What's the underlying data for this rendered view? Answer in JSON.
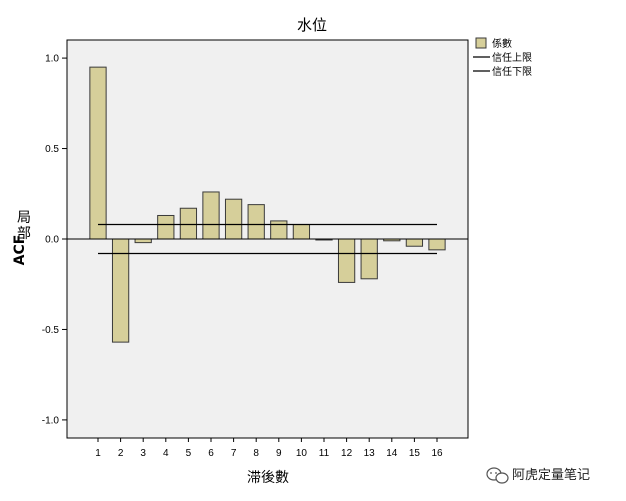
{
  "chart_data": {
    "type": "bar",
    "title": "水位",
    "xlabel": "滞後數",
    "ylabel_line1": "局",
    "ylabel_line2": "部",
    "ylabel_line3": "ACF",
    "categories": [
      "1",
      "2",
      "3",
      "4",
      "5",
      "6",
      "7",
      "8",
      "9",
      "10",
      "11",
      "12",
      "13",
      "14",
      "15",
      "16"
    ],
    "series": [
      {
        "name": "係數",
        "values": [
          0.95,
          -0.57,
          -0.02,
          0.13,
          0.17,
          0.26,
          0.22,
          0.19,
          0.1,
          0.08,
          0.0,
          -0.24,
          -0.22,
          -0.01,
          -0.04,
          -0.06
        ],
        "color": "#d6cf9a",
        "edge_color": "#3a3a3a"
      }
    ],
    "confidence_limits": {
      "upper_name": "信任上限",
      "lower_name": "信任下限",
      "upper": 0.08,
      "lower": -0.08
    },
    "ylim": [
      -1.1,
      1.1
    ],
    "yticks": [
      1.0,
      0.5,
      0.0,
      -0.5,
      -1.0
    ],
    "ytick_labels": [
      "1.0",
      "0.5",
      "0.0",
      "-0.5",
      "-1.0"
    ],
    "grid": false,
    "legend_position": "top-right",
    "plot_background": "#f0f0f0",
    "page_background": "#ffffff"
  },
  "watermark": {
    "text": "阿虎定量笔记",
    "icon": "wechat-icon"
  }
}
